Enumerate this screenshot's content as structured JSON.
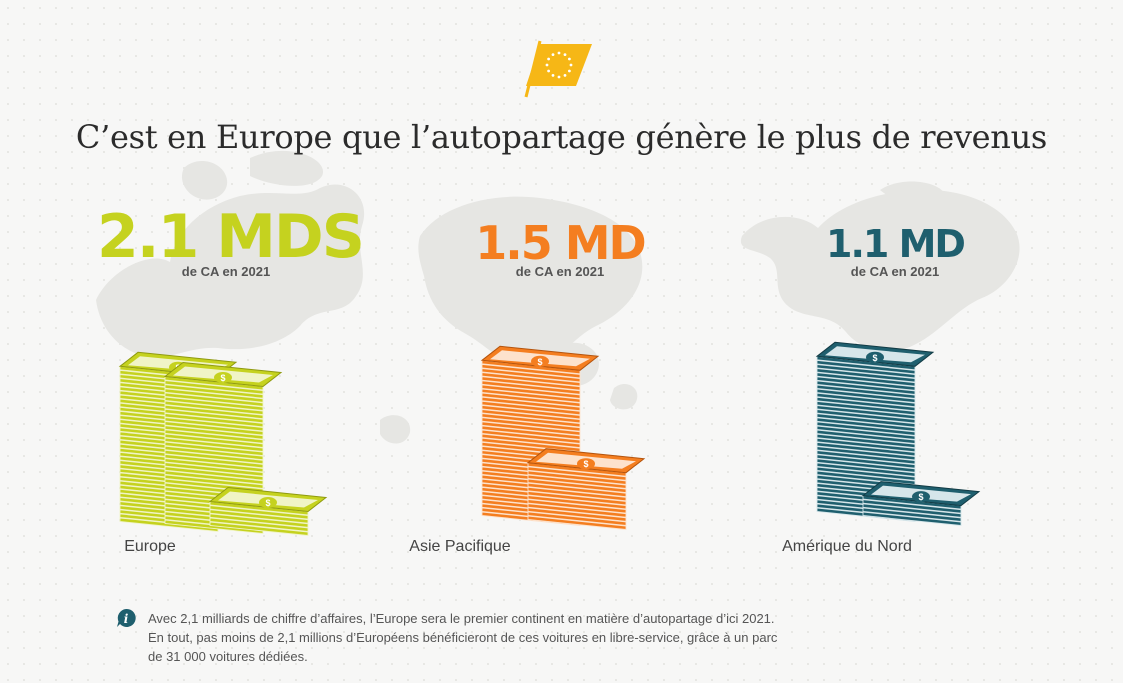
{
  "title": "C’est en Europe que l’autopartage génère le plus de revenus",
  "flag_icon": "eu-flag-icon",
  "regions": [
    {
      "name": "Europe",
      "value": "2.1 MDS",
      "subtitle": "de CA en 2021",
      "color": "#c5d21f",
      "dark": "#8f9a10",
      "light": "#f0f4c6"
    },
    {
      "name": "Asie Pacifique",
      "value": "1.5 MD",
      "subtitle": "de CA en 2021",
      "color": "#f47e20",
      "dark": "#b5540d",
      "light": "#fde2cc"
    },
    {
      "name": "Amérique du Nord",
      "value": "1.1 MD",
      "subtitle": "de CA en 2021",
      "color": "#1f5f6e",
      "dark": "#123b45",
      "light": "#d6e6ea"
    }
  ],
  "note": {
    "icon": "info-icon",
    "lines": [
      "Avec 2,1 milliards de chiffre d’affaires, l’Europe sera le premier continent en matière d’autopartage d’ici 2021.",
      "En tout, pas moins de 2,1 millions d’Européens bénéficieront de ces voitures en libre-service, grâce à un parc",
      "de 31 000 voitures dédiées."
    ]
  },
  "colors": {
    "map": "#e7e7e4",
    "title": "#2b2b2b",
    "flag": "#f6b716",
    "info": "#1f5f6e"
  }
}
